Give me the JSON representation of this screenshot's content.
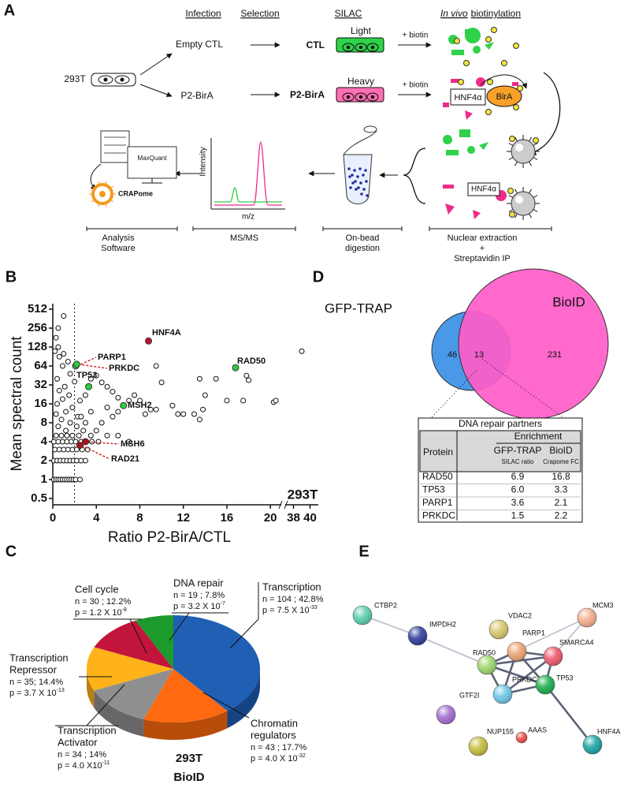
{
  "panel_a": {
    "label": "A",
    "headers": [
      "Infection",
      "Selection",
      "SILAC"
    ],
    "biotinylation_header": {
      "italic": "In vivo",
      "rest": "biotinylation"
    },
    "cell_line": "293T",
    "constructs": [
      "Empty CTL",
      "P2-BirA"
    ],
    "silac": [
      {
        "label": "Light",
        "sample": "CTL"
      },
      {
        "label": "Heavy",
        "sample": "P2-BirA"
      }
    ],
    "biotin": [
      "+ biotin",
      "+ biotin"
    ],
    "hnf4a": "HNF4α",
    "bira": "BirA",
    "hnf4a_ip": "HNF4α",
    "maxquant": "MaxQuant",
    "crapome": "CRAPome",
    "ms_axes": {
      "y": "Intensity",
      "x": "m/z"
    },
    "steps": [
      [
        "Analysis",
        "Software"
      ],
      [
        "MS/MS"
      ],
      [
        "On-bead",
        "digestion"
      ],
      [
        "Nuclear extraction",
        "+",
        "Streptavidin IP"
      ]
    ]
  },
  "chart_data": [
    {
      "type": "scatter",
      "panel_label": "B",
      "ylabel": "Mean spectral count",
      "xlabel": "Ratio P2-BirA/CTL",
      "annotation": "293T",
      "x": [
        0.1,
        0.3,
        0.5,
        0.7,
        0.9,
        1.1,
        1.3,
        1.5,
        1.7,
        1.9,
        2.1,
        2.5,
        0.1,
        0.4,
        0.7,
        1.0,
        1.3,
        1.6,
        1.9,
        2.2,
        2.6,
        3.0,
        0.2,
        0.6,
        1.0,
        1.4,
        1.8,
        2.2,
        2.7,
        3.2,
        0.1,
        0.5,
        0.9,
        1.3,
        1.7,
        2.1,
        2.6,
        3.1,
        3.6,
        4.2,
        0.3,
        0.8,
        1.3,
        1.8,
        2.4,
        3.5,
        5.0,
        1.0,
        0.5,
        0.3,
        0.5,
        0.2,
        1.0,
        0.6,
        1.4,
        0.9,
        1.6,
        0.4,
        2.0,
        1.1,
        0.6,
        1.5,
        0.9,
        0.4,
        1.8,
        1.2,
        0.3,
        2.3,
        0.8,
        1.6,
        0.5,
        2.2,
        1.2,
        2.8,
        2.5,
        3.0,
        3.5,
        4.0,
        4.5,
        5.0,
        5.5,
        6.0,
        7.0,
        7.5,
        8.0,
        3.5,
        2.6,
        3.0,
        4.5,
        5.0,
        5.5,
        6.0,
        4.0,
        6.0,
        7.0,
        9.0,
        8.5,
        9.5,
        10.0,
        9.5,
        11.0,
        11.5,
        12.0,
        13.0,
        13.5,
        13.8,
        13.5,
        14.0,
        15.0,
        16.0,
        17.5,
        17.8,
        18.0,
        20.3,
        20.5,
        39
      ],
      "y": [
        1,
        1,
        1,
        1,
        1,
        1,
        1,
        1,
        1,
        1,
        1,
        1,
        2,
        2,
        2,
        2,
        2,
        2,
        2,
        2,
        2,
        2,
        3,
        3,
        3,
        3,
        3,
        3,
        3,
        3,
        4,
        4,
        4,
        4,
        4,
        4,
        4,
        4,
        4,
        4,
        5,
        5,
        5,
        5,
        5,
        5,
        5,
        400,
        256,
        180,
        128,
        110,
        100,
        90,
        75,
        64,
        48,
        40,
        36,
        30,
        26,
        22,
        19,
        16,
        14,
        12,
        11,
        10,
        9,
        8,
        7,
        7,
        6,
        6,
        18,
        22,
        40,
        45,
        35,
        30,
        25,
        20,
        18,
        22,
        18,
        12,
        10,
        8,
        8,
        14,
        10,
        12,
        6,
        5,
        4,
        13,
        11,
        13,
        35,
        64,
        15,
        11,
        11,
        11,
        9,
        13,
        40,
        22,
        40,
        18,
        18,
        45,
        38,
        17,
        18,
        110
      ],
      "highlights": [
        {
          "name": "PARP1",
          "x": 2.1,
          "y": 64,
          "color": "#2ecc40"
        },
        {
          "name": "PRKDC",
          "x": 2.2,
          "y": 68,
          "color": "#2ecc40"
        },
        {
          "name": "TP53",
          "x": 3.3,
          "y": 30,
          "color": "#2ecc40"
        },
        {
          "name": "HNF4A",
          "x": 8.8,
          "y": 160,
          "color": "#c0142c"
        },
        {
          "name": "RAD50",
          "x": 16.8,
          "y": 60,
          "color": "#2ecc40"
        },
        {
          "name": "MSH2",
          "x": 6.5,
          "y": 15,
          "color": "#2ecc40"
        },
        {
          "name": "MSH6",
          "x": 3.0,
          "y": 4,
          "color": "#b01020"
        },
        {
          "name": "RAD21",
          "x": 2.5,
          "y": 3.5,
          "color": "#b01020"
        }
      ],
      "threshold_x": 2,
      "xlim": [
        0,
        41
      ],
      "x_break": [
        21,
        37
      ],
      "xticks": [
        0,
        4,
        8,
        12,
        16,
        20,
        38,
        40
      ],
      "ylim": [
        0.5,
        512
      ],
      "yticks": [
        0.5,
        1,
        2,
        4,
        8,
        16,
        32,
        64,
        128,
        256,
        512
      ],
      "log_scale_y": true
    },
    {
      "type": "pie",
      "panel_label": "C",
      "categories": [
        [
          "Transcription"
        ],
        [
          "Chromatin",
          "regulators"
        ],
        [
          "Transcription",
          "Activator"
        ],
        [
          "Transcription",
          "Repressor"
        ],
        [
          "Cell cycle"
        ],
        [
          "DNA repair"
        ]
      ],
      "values": [
        42.8,
        17.7,
        14,
        14.4,
        12.2,
        7.8
      ],
      "value_labels": [
        "n = 104 ; 42.8%",
        "n = 43 ; 17.7%",
        "n = 34 ; 14%",
        "n = 35; 14.4%",
        "n = 30 ; 12.2%",
        "n = 19 ; 7.8%"
      ],
      "p_labels": [
        {
          "base": "p = 7.5 X 10",
          "exp": "-33"
        },
        {
          "base": "p = 4.0 X 10",
          "exp": "-32"
        },
        {
          "base": "p = 4.0 X10",
          "exp": "-11"
        },
        {
          "base": "p = 3.7 X 10",
          "exp": "-13"
        },
        {
          "base": "p = 1.2 X 10",
          "exp": "-8"
        },
        {
          "base": "p = 3.2 X 10",
          "exp": "-7"
        }
      ],
      "colors": [
        "#1f5fb4",
        "#ff6a10",
        "#8f8f8f",
        "#ffb21a",
        "#c3143c",
        "#1c9a2c"
      ],
      "annotation": [
        "293T",
        "BioID"
      ]
    }
  ],
  "panel_d": {
    "label": "D",
    "venn": {
      "sets": [
        "GFP-TRAP",
        "BioID"
      ],
      "counts": [
        46,
        13,
        231
      ]
    },
    "table": {
      "title": "DNA repair partners",
      "header": {
        "protein": "Protein",
        "enrichment": "Enrichment",
        "columns": [
          "GFP-TRAP",
          "BioID"
        ],
        "units": [
          "SILAC ratio",
          "Crapome FC"
        ]
      },
      "rows": [
        [
          "RAD50",
          "6.9",
          "16.8"
        ],
        [
          "TP53",
          "6.0",
          "3.3"
        ],
        [
          "PARP1",
          "3.6",
          "2.1"
        ],
        [
          "PRKDC",
          "1.5",
          "2.2"
        ]
      ]
    }
  },
  "panel_e": {
    "label": "E",
    "nodes": [
      {
        "label": "CTBP2",
        "color": "#5ccfae"
      },
      {
        "label": "IMPDH2",
        "color": "#34409e"
      },
      {
        "label": "VDAC2",
        "color": "#d8c66c"
      },
      {
        "label": "MCM3",
        "color": "#f4ae8c"
      },
      {
        "label": "PARP1",
        "color": "#f0a474"
      },
      {
        "label": "RAD50",
        "color": "#9fd66c"
      },
      {
        "label": "SMARCA4",
        "color": "#ee5a6c"
      },
      {
        "label": "PRKDC",
        "color": "#6cc6e8"
      },
      {
        "label": "TP53",
        "color": "#1fae4e"
      },
      {
        "label": "GTF2I",
        "color": "#a46ed2"
      },
      {
        "label": "NUP155",
        "color": "#c6be3e"
      },
      {
        "label": "AAAS",
        "color": "#ee4c4c"
      },
      {
        "label": "HNF4A",
        "color": "#1ea6a6"
      }
    ]
  }
}
